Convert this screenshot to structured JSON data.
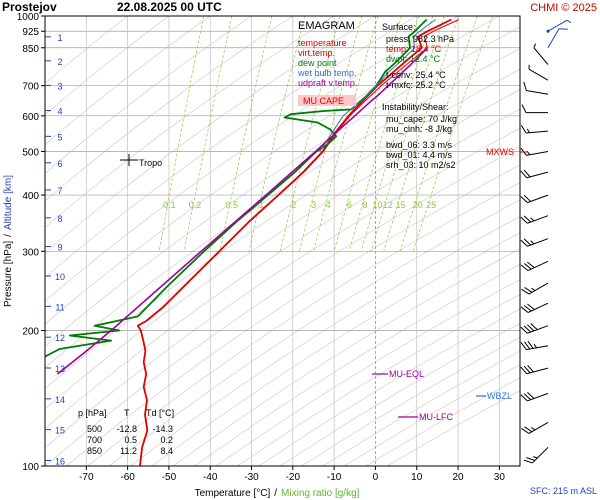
{
  "header": {
    "station": "Prostejov",
    "datetime": "22.08.2025 00 UTC",
    "credit": "CHMI © 2025"
  },
  "legend": {
    "title": "EMAGRAM",
    "items": [
      {
        "label": "temperature",
        "color": "#e00000"
      },
      {
        "label": "virt.temp.",
        "color": "#e00000"
      },
      {
        "label": "dew point",
        "color": "#008000"
      },
      {
        "label": "wet bulb temp.",
        "color": "#3070d0"
      },
      {
        "label": "udpraft v.temp.",
        "color": "#a000a0"
      }
    ],
    "mu_cape_box": "MU CAPE",
    "mu_cape_color": "#ffc8c8"
  },
  "indices": {
    "surface_title": "Surface:",
    "press": "press: 982.3 hPa",
    "temp": "temp: 18.4 °C",
    "dwpt": "dwpt: 12.4 °C",
    "tconv": "t-conv: 25.4 °C",
    "tmxfc": "t-mxfc: 25.2 °C",
    "instab_title": "Instability/Shear:",
    "mu_cape": "mu_cape: 70 J/kg",
    "mu_cinh": "mu_cinh: -8 J/kg",
    "bwd_06": "bwd_06: 3.3 m/s",
    "bwd_01": "bwd_01: 4.4 m/s",
    "srh_03": "srh_03: 10 m2/s2"
  },
  "table": {
    "headers": [
      "p [hPa]",
      "T",
      "Td [°C]"
    ],
    "rows": [
      [
        "500",
        "-12.8",
        "-14.3"
      ],
      [
        "700",
        "0.5",
        "0.2"
      ],
      [
        "850",
        "11.2",
        "8.4"
      ]
    ]
  },
  "annotations": {
    "tropo": "Tropo",
    "mxws": "MXWS",
    "mu_eql": "MU-EQL",
    "wbzl": "WBZL",
    "mu_lfc": "MU-LFC",
    "sfc": "SFC: 215 m ASL"
  },
  "axes": {
    "xlabel_part1": "Temperature [°C]",
    "xlabel_sep": "/",
    "xlabel_part2": "Mixing ratio [g/kg]",
    "ylabel_part1": "Pressure [hPa]",
    "ylabel_sep": "/",
    "ylabel_part2": "Altitude [km]"
  },
  "colors": {
    "temperature": "#e00000",
    "dewpoint": "#007a00",
    "wetbulb": "#3070d0",
    "parcel": "#a000a0",
    "mixing_ratio": "#8ccc3c",
    "altitude": "#2040c0",
    "wind": "#000000",
    "wind_low": "#2040c0"
  },
  "chart_data": {
    "type": "line",
    "title": "EMAGRAM",
    "x_range": [
      -80,
      35
    ],
    "p_range": [
      1000,
      100
    ],
    "x_ticks": [
      -70,
      -60,
      -50,
      -40,
      -30,
      -20,
      -10,
      0,
      10,
      20,
      30
    ],
    "p_ticks": [
      100,
      200,
      300,
      400,
      500,
      600,
      700,
      850,
      925,
      1000
    ],
    "altitude_ticks_km": [
      1,
      2,
      3,
      4,
      5,
      6,
      7,
      8,
      9,
      10,
      11,
      12,
      13,
      14,
      15,
      16
    ],
    "mixing_ratio_labels": [
      "0.1",
      "0.2",
      "0.5",
      "1",
      "2",
      "3",
      "4",
      "6",
      "8",
      "10",
      "12",
      "15",
      "20",
      "25"
    ],
    "series": [
      {
        "name": "temperature",
        "points": [
          [
            982,
            18.4
          ],
          [
            950,
            15.2
          ],
          [
            925,
            12.6
          ],
          [
            900,
            10.3
          ],
          [
            850,
            11.2
          ],
          [
            800,
            7.8
          ],
          [
            750,
            4.3
          ],
          [
            700,
            0.5
          ],
          [
            650,
            -2.9
          ],
          [
            600,
            -6.5
          ],
          [
            550,
            -9.8
          ],
          [
            500,
            -12.8
          ],
          [
            450,
            -17.5
          ],
          [
            400,
            -23.5
          ],
          [
            350,
            -30.5
          ],
          [
            300,
            -37.8
          ],
          [
            250,
            -46.5
          ],
          [
            225,
            -51.5
          ],
          [
            210,
            -55.5
          ],
          [
            205,
            -57.5
          ],
          [
            200,
            -56.8
          ],
          [
            190,
            -56.2
          ],
          [
            180,
            -55.7
          ],
          [
            170,
            -56.1
          ],
          [
            160,
            -55.5
          ],
          [
            150,
            -56.1
          ],
          [
            140,
            -55.3
          ],
          [
            130,
            -55.8
          ],
          [
            120,
            -55.2
          ],
          [
            110,
            -56.5
          ],
          [
            100,
            -57.0
          ]
        ]
      },
      {
        "name": "virt.temp.",
        "points": [
          [
            982,
            20.2
          ],
          [
            950,
            16.8
          ],
          [
            925,
            14.1
          ],
          [
            900,
            11.8
          ],
          [
            850,
            12.6
          ],
          [
            800,
            9.0
          ],
          [
            750,
            5.3
          ],
          [
            700,
            1.4
          ],
          [
            650,
            -2.3
          ],
          [
            600,
            -6.2
          ],
          [
            550,
            -9.5
          ],
          [
            500,
            -12.6
          ],
          [
            450,
            -17.3
          ],
          [
            400,
            -23.4
          ],
          [
            350,
            -30.4
          ],
          [
            300,
            -37.7
          ],
          [
            250,
            -46.4
          ],
          [
            225,
            -51.4
          ]
        ]
      },
      {
        "name": "dew point",
        "points": [
          [
            982,
            12.4
          ],
          [
            950,
            10.8
          ],
          [
            925,
            9.6
          ],
          [
            900,
            8.0
          ],
          [
            850,
            8.4
          ],
          [
            800,
            5.6
          ],
          [
            750,
            2.3
          ],
          [
            700,
            0.2
          ],
          [
            660,
            -2.5
          ],
          [
            640,
            -4.2
          ],
          [
            620,
            -5.8
          ],
          [
            615,
            -12.5
          ],
          [
            605,
            -20.5
          ],
          [
            595,
            -22.0
          ],
          [
            580,
            -14.0
          ],
          [
            560,
            -11.0
          ],
          [
            540,
            -9.5
          ],
          [
            520,
            -11.4
          ],
          [
            500,
            -14.3
          ],
          [
            450,
            -19.5
          ],
          [
            400,
            -26.0
          ],
          [
            350,
            -33.5
          ],
          [
            300,
            -41.5
          ],
          [
            250,
            -50.5
          ],
          [
            215,
            -57.5
          ],
          [
            205,
            -68.0
          ],
          [
            200,
            -62.0
          ],
          [
            195,
            -74.0
          ],
          [
            190,
            -64.0
          ],
          [
            182,
            -76.5
          ],
          [
            175,
            -80.0
          ]
        ]
      },
      {
        "name": "wet bulb temp.",
        "points": [
          [
            982,
            14.6
          ],
          [
            950,
            12.4
          ],
          [
            925,
            10.8
          ],
          [
            900,
            9.1
          ],
          [
            850,
            9.5
          ],
          [
            800,
            6.6
          ],
          [
            750,
            3.1
          ],
          [
            700,
            0.3
          ],
          [
            650,
            -3.2
          ],
          [
            600,
            -7.8
          ],
          [
            550,
            -10.5
          ],
          [
            500,
            -13.5
          ]
        ]
      },
      {
        "name": "udpraft v.temp.",
        "points": [
          [
            850,
            12.6
          ],
          [
            800,
            9.8
          ],
          [
            750,
            6.6
          ],
          [
            700,
            3.1
          ],
          [
            670,
            0.9
          ],
          [
            650,
            -0.8
          ],
          [
            600,
            -5.0
          ],
          [
            550,
            -9.6
          ],
          [
            500,
            -14.5
          ],
          [
            450,
            -20.2
          ],
          [
            400,
            -26.5
          ],
          [
            350,
            -33.8
          ],
          [
            300,
            -42.2
          ],
          [
            250,
            -52.0
          ],
          [
            200,
            -64.0
          ],
          [
            180,
            -70.0
          ],
          [
            160,
            -77.0
          ]
        ]
      }
    ],
    "wind_barbs": [
      {
        "p": 110,
        "dir": 225,
        "spd": 25
      },
      {
        "p": 125,
        "dir": 240,
        "spd": 25
      },
      {
        "p": 145,
        "dir": 250,
        "spd": 30
      },
      {
        "p": 165,
        "dir": 255,
        "spd": 30
      },
      {
        "p": 185,
        "dir": 260,
        "spd": 35
      },
      {
        "p": 205,
        "dir": 250,
        "spd": 40
      },
      {
        "p": 230,
        "dir": 245,
        "spd": 30
      },
      {
        "p": 255,
        "dir": 240,
        "spd": 25
      },
      {
        "p": 285,
        "dir": 245,
        "spd": 30
      },
      {
        "p": 320,
        "dir": 250,
        "spd": 25
      },
      {
        "p": 360,
        "dir": 250,
        "spd": 25
      },
      {
        "p": 400,
        "dir": 250,
        "spd": 20
      },
      {
        "p": 450,
        "dir": 255,
        "spd": 20
      },
      {
        "p": 500,
        "dir": 260,
        "spd": 15
      },
      {
        "p": 555,
        "dir": 265,
        "spd": 15
      },
      {
        "p": 610,
        "dir": 270,
        "spd": 10
      },
      {
        "p": 670,
        "dir": 280,
        "spd": 10
      },
      {
        "p": 720,
        "dir": 300,
        "spd": 5
      },
      {
        "p": 780,
        "dir": 320,
        "spd": 5
      },
      {
        "p": 850,
        "dir": 30,
        "spd": 10
      },
      {
        "p": 925,
        "dir": 60,
        "spd": 5
      }
    ]
  }
}
